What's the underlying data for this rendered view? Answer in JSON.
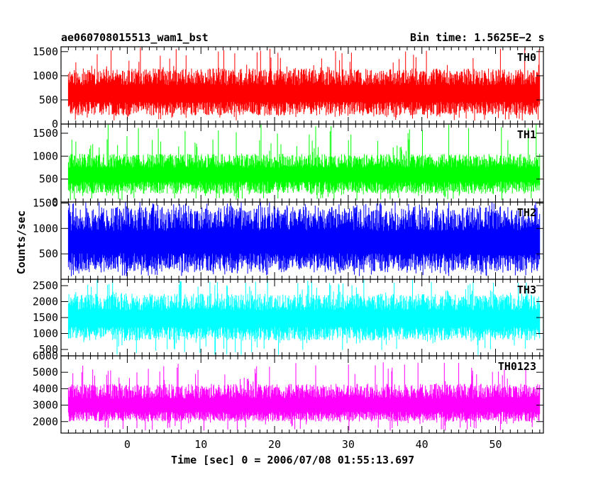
{
  "header": {
    "left": "ae060708015513_wam1_bst",
    "right": "Bin time: 1.5625E−2 s"
  },
  "chart_data": {
    "type": "line",
    "xlabel": "Time [sec] 0 = 2006/07/08 01:55:13.697",
    "ylabel": "Counts/sec",
    "xlim": [
      -9,
      56.5
    ],
    "x_data_range": [
      -8,
      56
    ],
    "x_ticks": [
      0,
      10,
      20,
      30,
      40,
      50
    ],
    "x_tick_labels": [
      "0",
      "10",
      "20",
      "30",
      "40",
      "50"
    ],
    "bin_time_s": 0.015625,
    "panels": [
      {
        "name": "TH0",
        "color": "#ff0000",
        "ylim": [
          0,
          1600
        ],
        "y_ticks": [
          0,
          500,
          1000,
          1500
        ],
        "y_tick_labels": [
          "0",
          "500",
          "1000",
          "1500"
        ],
        "baseline": 650,
        "band_low": 180,
        "band_high": 1150,
        "spike_min": 60,
        "spike_max": 1600
      },
      {
        "name": "TH1",
        "color": "#00ff00",
        "ylim": [
          0,
          1700
        ],
        "y_ticks": [
          0,
          500,
          1000,
          1500
        ],
        "y_tick_labels": [
          "0",
          "500",
          "1000",
          "1500"
        ],
        "baseline": 620,
        "band_low": 180,
        "band_high": 1050,
        "spike_min": 40,
        "spike_max": 1700
      },
      {
        "name": "TH2",
        "color": "#0000ff",
        "ylim": [
          0,
          1520
        ],
        "y_ticks": [
          500,
          1000,
          1500
        ],
        "y_tick_labels": [
          "500",
          "1000",
          "1500"
        ],
        "baseline": 750,
        "band_low": 160,
        "band_high": 1420,
        "spike_min": 60,
        "spike_max": 1520
      },
      {
        "name": "TH3",
        "color": "#00ffff",
        "ylim": [
          300,
          2700
        ],
        "y_ticks": [
          500,
          1000,
          1500,
          2000,
          2500
        ],
        "y_tick_labels": [
          "500",
          "1000",
          "1500",
          "2000",
          "2500"
        ],
        "baseline": 1500,
        "band_low": 780,
        "band_high": 2250,
        "spike_min": 320,
        "spike_max": 2700
      },
      {
        "name": "TH0123",
        "color": "#ff00ff",
        "ylim": [
          1300,
          6000
        ],
        "y_ticks": [
          2000,
          3000,
          4000,
          5000,
          6000
        ],
        "y_tick_labels": [
          "2000",
          "3000",
          "4000",
          "5000",
          "6000"
        ],
        "baseline": 3000,
        "band_low": 2000,
        "band_high": 4300,
        "spike_min": 1450,
        "spike_max": 5600
      }
    ]
  }
}
